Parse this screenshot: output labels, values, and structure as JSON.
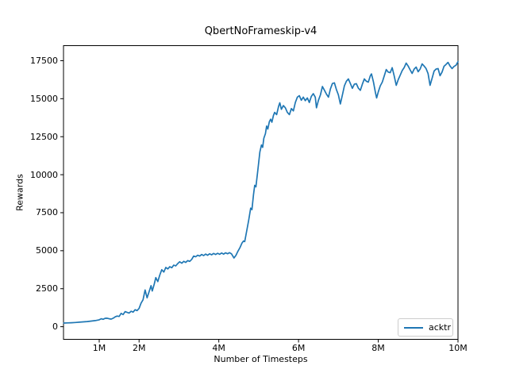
{
  "figure": {
    "background": "#ffffff",
    "text_color": "#000000"
  },
  "chart_data": {
    "type": "line",
    "title": "QbertNoFrameskip-v4",
    "xlabel": "Number of Timesteps",
    "ylabel": "Rewards",
    "grid": false,
    "legend": {
      "position": "lower right",
      "entries": [
        "acktr"
      ]
    },
    "xlim_millions": [
      0.104,
      10
    ],
    "ylim": [
      -830,
      18490
    ],
    "x_ticks": [
      {
        "value": 1,
        "label": "1M"
      },
      {
        "value": 2,
        "label": "2M"
      },
      {
        "value": 4,
        "label": "4M"
      },
      {
        "value": 6,
        "label": "6M"
      },
      {
        "value": 8,
        "label": "8M"
      },
      {
        "value": 10,
        "label": "10M"
      }
    ],
    "y_ticks": [
      {
        "value": 0,
        "label": "0"
      },
      {
        "value": 2500,
        "label": "2500"
      },
      {
        "value": 5000,
        "label": "5000"
      },
      {
        "value": 7500,
        "label": "7500"
      },
      {
        "value": 10000,
        "label": "10000"
      },
      {
        "value": 12500,
        "label": "12500"
      },
      {
        "value": 15000,
        "label": "15000"
      },
      {
        "value": 17500,
        "label": "17500"
      }
    ],
    "series": [
      {
        "name": "acktr",
        "color": "#1f77b4",
        "x_unit": "millions of timesteps",
        "points": [
          [
            0.11,
            240
          ],
          [
            0.2,
            252
          ],
          [
            0.3,
            262
          ],
          [
            0.4,
            278
          ],
          [
            0.5,
            296
          ],
          [
            0.6,
            318
          ],
          [
            0.7,
            342
          ],
          [
            0.8,
            372
          ],
          [
            0.9,
            402
          ],
          [
            0.95,
            430
          ],
          [
            1.0,
            452
          ],
          [
            1.05,
            520
          ],
          [
            1.1,
            484
          ],
          [
            1.15,
            552
          ],
          [
            1.2,
            560
          ],
          [
            1.25,
            524
          ],
          [
            1.3,
            504
          ],
          [
            1.35,
            560
          ],
          [
            1.4,
            648
          ],
          [
            1.45,
            700
          ],
          [
            1.5,
            672
          ],
          [
            1.55,
            880
          ],
          [
            1.6,
            800
          ],
          [
            1.65,
            990
          ],
          [
            1.7,
            940
          ],
          [
            1.75,
            900
          ],
          [
            1.8,
            1020
          ],
          [
            1.85,
            960
          ],
          [
            1.9,
            1120
          ],
          [
            1.95,
            1060
          ],
          [
            2.0,
            1200
          ],
          [
            2.05,
            1550
          ],
          [
            2.1,
            1770
          ],
          [
            2.15,
            2420
          ],
          [
            2.2,
            1900
          ],
          [
            2.25,
            2300
          ],
          [
            2.3,
            2700
          ],
          [
            2.33,
            2350
          ],
          [
            2.38,
            2800
          ],
          [
            2.42,
            3230
          ],
          [
            2.47,
            2970
          ],
          [
            2.52,
            3400
          ],
          [
            2.57,
            3750
          ],
          [
            2.62,
            3600
          ],
          [
            2.67,
            3900
          ],
          [
            2.72,
            3800
          ],
          [
            2.77,
            3950
          ],
          [
            2.82,
            3880
          ],
          [
            2.87,
            4050
          ],
          [
            2.92,
            4000
          ],
          [
            2.97,
            4150
          ],
          [
            3.02,
            4270
          ],
          [
            3.07,
            4180
          ],
          [
            3.12,
            4300
          ],
          [
            3.17,
            4230
          ],
          [
            3.22,
            4350
          ],
          [
            3.27,
            4300
          ],
          [
            3.32,
            4430
          ],
          [
            3.37,
            4650
          ],
          [
            3.42,
            4600
          ],
          [
            3.47,
            4700
          ],
          [
            3.52,
            4650
          ],
          [
            3.57,
            4750
          ],
          [
            3.62,
            4680
          ],
          [
            3.67,
            4780
          ],
          [
            3.72,
            4700
          ],
          [
            3.77,
            4800
          ],
          [
            3.82,
            4730
          ],
          [
            3.87,
            4820
          ],
          [
            3.92,
            4750
          ],
          [
            3.97,
            4830
          ],
          [
            4.02,
            4760
          ],
          [
            4.07,
            4850
          ],
          [
            4.12,
            4780
          ],
          [
            4.17,
            4860
          ],
          [
            4.22,
            4800
          ],
          [
            4.27,
            4870
          ],
          [
            4.32,
            4790
          ],
          [
            4.38,
            4520
          ],
          [
            4.43,
            4700
          ],
          [
            4.48,
            4970
          ],
          [
            4.53,
            5200
          ],
          [
            4.58,
            5500
          ],
          [
            4.62,
            5640
          ],
          [
            4.65,
            5600
          ],
          [
            4.7,
            6300
          ],
          [
            4.75,
            7000
          ],
          [
            4.8,
            7800
          ],
          [
            4.83,
            7700
          ],
          [
            4.87,
            8700
          ],
          [
            4.9,
            9300
          ],
          [
            4.93,
            9200
          ],
          [
            4.97,
            10100
          ],
          [
            5.0,
            10800
          ],
          [
            5.03,
            11500
          ],
          [
            5.07,
            11950
          ],
          [
            5.1,
            11800
          ],
          [
            5.13,
            12400
          ],
          [
            5.17,
            12700
          ],
          [
            5.2,
            13200
          ],
          [
            5.23,
            13000
          ],
          [
            5.27,
            13500
          ],
          [
            5.3,
            13650
          ],
          [
            5.33,
            13450
          ],
          [
            5.37,
            13900
          ],
          [
            5.4,
            14100
          ],
          [
            5.45,
            13950
          ],
          [
            5.5,
            14500
          ],
          [
            5.53,
            14730
          ],
          [
            5.57,
            14300
          ],
          [
            5.62,
            14550
          ],
          [
            5.67,
            14400
          ],
          [
            5.72,
            14100
          ],
          [
            5.77,
            13950
          ],
          [
            5.82,
            14350
          ],
          [
            5.87,
            14200
          ],
          [
            5.92,
            14750
          ],
          [
            5.97,
            15100
          ],
          [
            6.02,
            15200
          ],
          [
            6.07,
            14900
          ],
          [
            6.12,
            15100
          ],
          [
            6.17,
            14870
          ],
          [
            6.22,
            15050
          ],
          [
            6.27,
            14750
          ],
          [
            6.32,
            15150
          ],
          [
            6.37,
            15330
          ],
          [
            6.42,
            15100
          ],
          [
            6.45,
            14400
          ],
          [
            6.5,
            14900
          ],
          [
            6.55,
            15250
          ],
          [
            6.6,
            15800
          ],
          [
            6.65,
            15550
          ],
          [
            6.7,
            15300
          ],
          [
            6.75,
            15100
          ],
          [
            6.8,
            15650
          ],
          [
            6.85,
            16000
          ],
          [
            6.9,
            16040
          ],
          [
            6.95,
            15600
          ],
          [
            7.0,
            15250
          ],
          [
            7.05,
            14650
          ],
          [
            7.1,
            15250
          ],
          [
            7.15,
            15850
          ],
          [
            7.2,
            16150
          ],
          [
            7.25,
            16300
          ],
          [
            7.3,
            16000
          ],
          [
            7.35,
            15680
          ],
          [
            7.4,
            15950
          ],
          [
            7.45,
            15990
          ],
          [
            7.5,
            15700
          ],
          [
            7.55,
            15550
          ],
          [
            7.6,
            15950
          ],
          [
            7.65,
            16300
          ],
          [
            7.7,
            16150
          ],
          [
            7.75,
            16090
          ],
          [
            7.8,
            16500
          ],
          [
            7.83,
            16630
          ],
          [
            7.88,
            16100
          ],
          [
            7.93,
            15400
          ],
          [
            7.96,
            15050
          ],
          [
            8.0,
            15450
          ],
          [
            8.05,
            15850
          ],
          [
            8.1,
            16090
          ],
          [
            8.15,
            16500
          ],
          [
            8.2,
            16920
          ],
          [
            8.25,
            16750
          ],
          [
            8.3,
            16710
          ],
          [
            8.35,
            17040
          ],
          [
            8.4,
            16500
          ],
          [
            8.45,
            15880
          ],
          [
            8.5,
            16250
          ],
          [
            8.55,
            16550
          ],
          [
            8.6,
            16850
          ],
          [
            8.65,
            17050
          ],
          [
            8.7,
            17340
          ],
          [
            8.75,
            17150
          ],
          [
            8.8,
            16900
          ],
          [
            8.85,
            16660
          ],
          [
            8.9,
            16950
          ],
          [
            8.95,
            17080
          ],
          [
            9.0,
            16770
          ],
          [
            9.05,
            16950
          ],
          [
            9.1,
            17290
          ],
          [
            9.15,
            17150
          ],
          [
            9.2,
            16980
          ],
          [
            9.25,
            16650
          ],
          [
            9.3,
            15880
          ],
          [
            9.35,
            16350
          ],
          [
            9.4,
            16820
          ],
          [
            9.45,
            16950
          ],
          [
            9.5,
            16980
          ],
          [
            9.55,
            16510
          ],
          [
            9.6,
            16750
          ],
          [
            9.65,
            17130
          ],
          [
            9.7,
            17250
          ],
          [
            9.75,
            17390
          ],
          [
            9.8,
            17150
          ],
          [
            9.85,
            16980
          ],
          [
            9.9,
            17120
          ],
          [
            9.95,
            17200
          ],
          [
            10.0,
            17440
          ]
        ]
      }
    ]
  }
}
